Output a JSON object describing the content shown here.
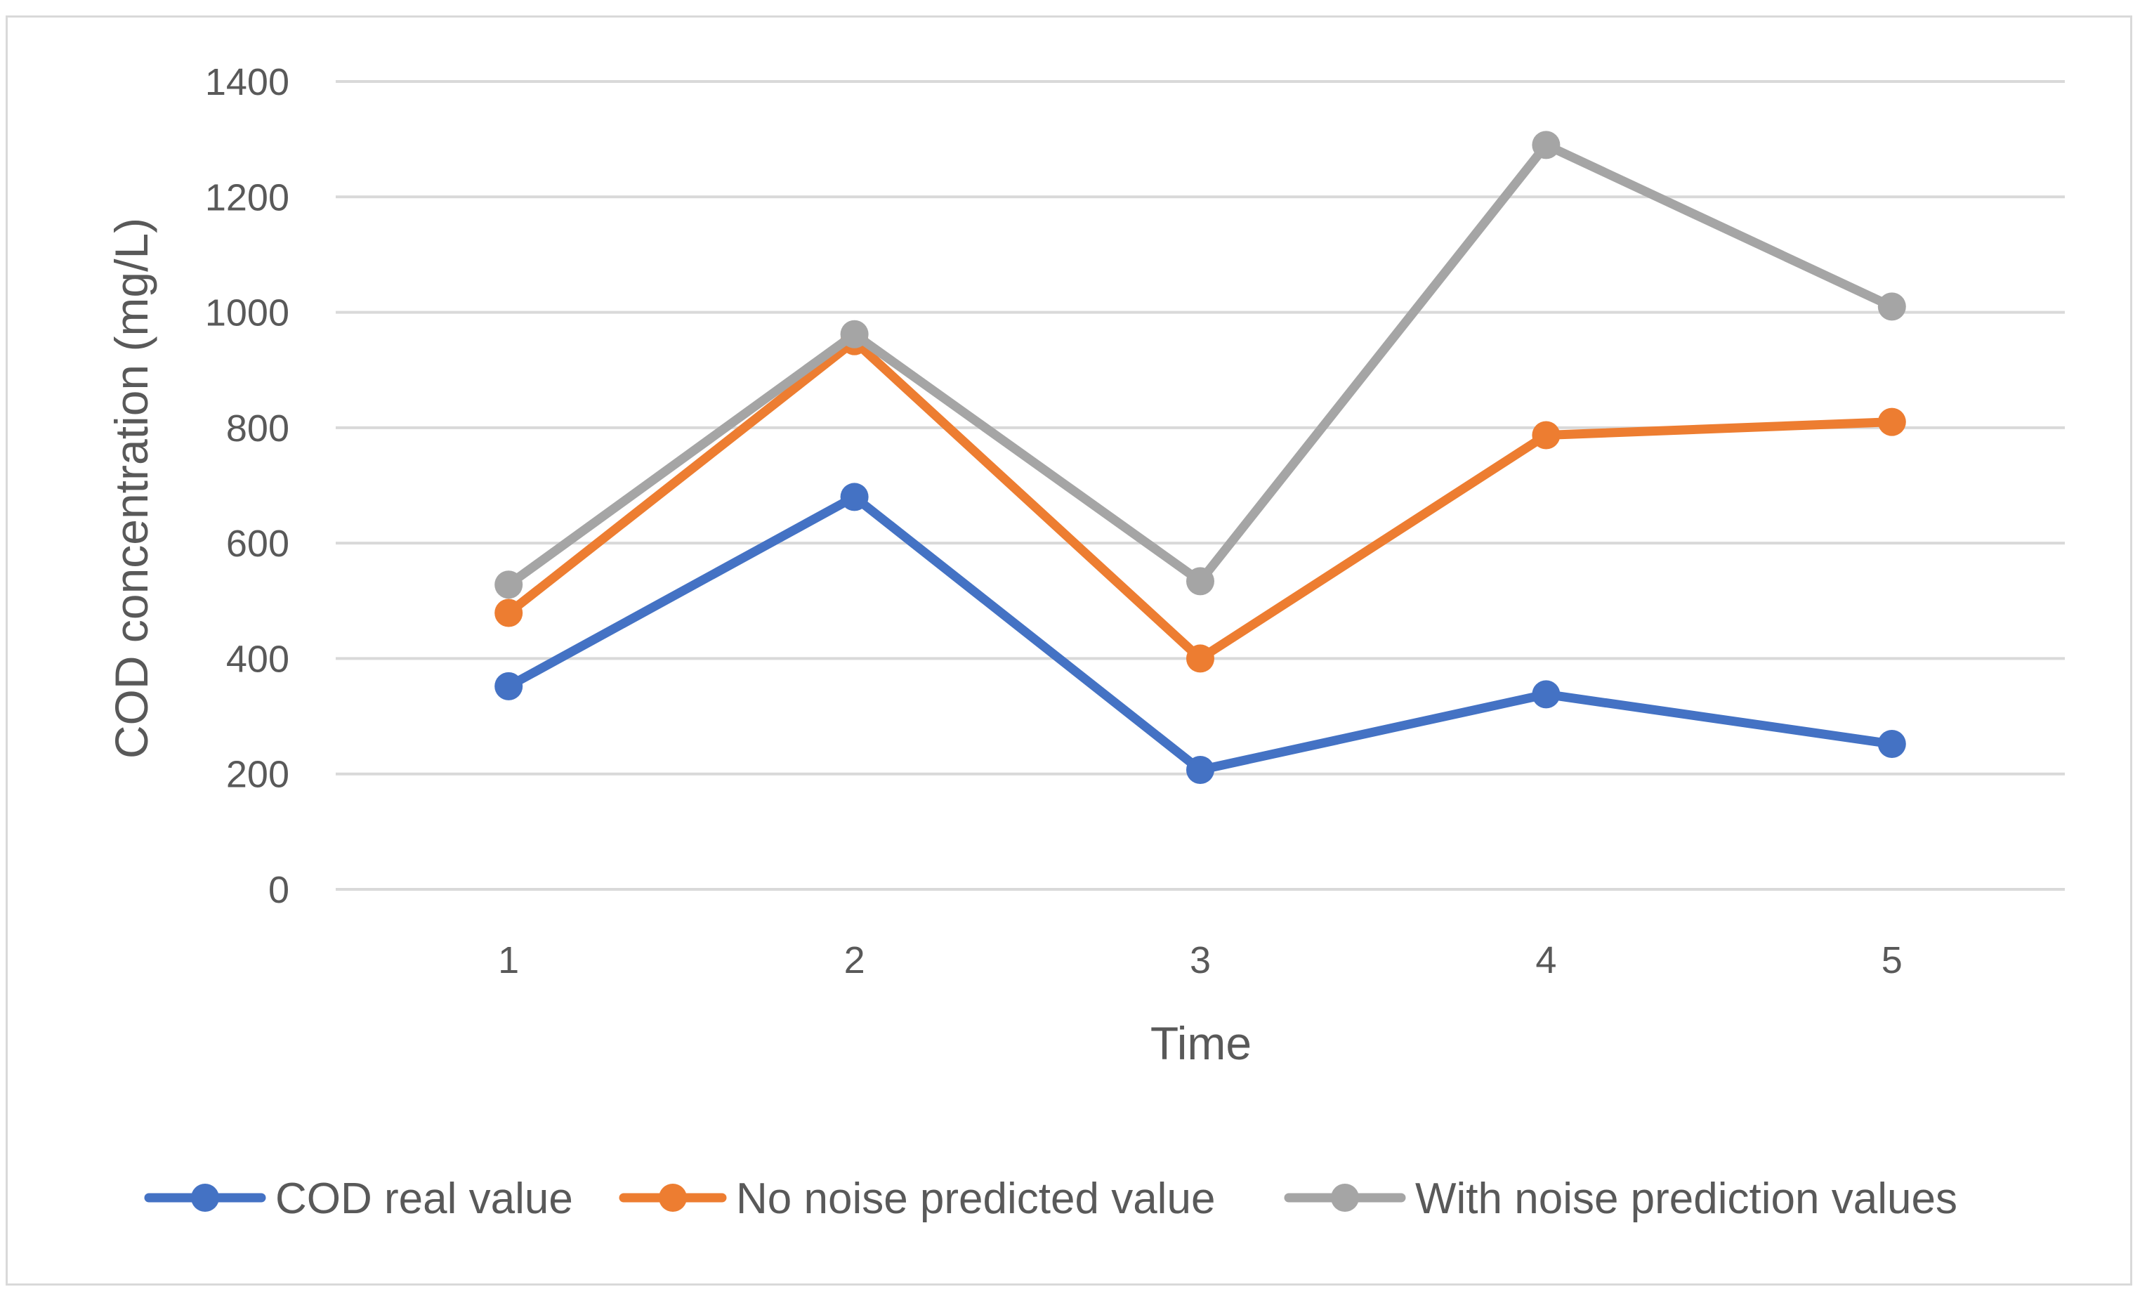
{
  "chart_data": {
    "type": "line",
    "title": "",
    "xlabel": "Time",
    "ylabel": "COD concentration (mg/L)",
    "categories": [
      "1",
      "2",
      "3",
      "4",
      "5"
    ],
    "ylim": [
      0,
      1400
    ],
    "yticks": [
      0,
      200,
      400,
      600,
      800,
      1000,
      1200,
      1400
    ],
    "grid": true,
    "legend_position": "bottom",
    "series": [
      {
        "name": "COD real value",
        "color": "#4472c4",
        "values": [
          352,
          680,
          207,
          338,
          252
        ]
      },
      {
        "name": "No noise predicted value",
        "color": "#ed7d31",
        "values": [
          479,
          950,
          400,
          787,
          810
        ]
      },
      {
        "name": "With noise prediction values",
        "color": "#a5a5a5",
        "values": [
          528,
          962,
          534,
          1290,
          1010
        ]
      }
    ]
  }
}
